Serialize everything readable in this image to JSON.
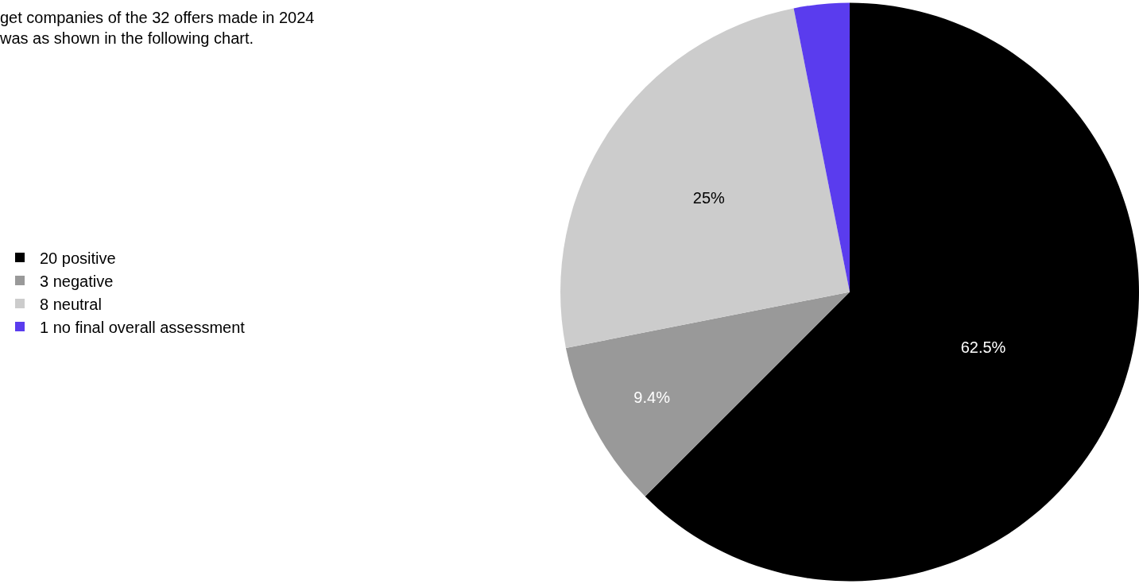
{
  "chart_data": {
    "type": "pie",
    "title": "get companies of the 32 offers made in 2024\nwas as shown in the following chart.",
    "categories": [
      "20 positive",
      "3 negative",
      "8 neutral",
      "1 no final overall assessment"
    ],
    "values": [
      62.5,
      9.4,
      25,
      3.1
    ],
    "value_labels": [
      "62.5%",
      "9.4%",
      "25%",
      null
    ],
    "colors": [
      "#000000",
      "#999999",
      "#cccccc",
      "#5a3cee"
    ],
    "legend": "left"
  }
}
